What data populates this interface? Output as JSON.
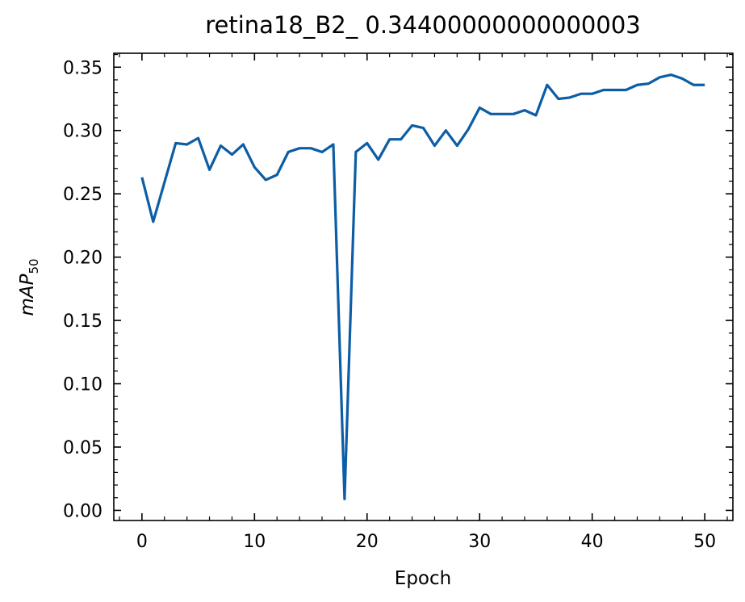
{
  "chart_data": {
    "type": "line",
    "title": "retina18_B2_ 0.34400000000000003",
    "xlabel": "Epoch",
    "ylabel": {
      "main": "mAP",
      "subscript": "50"
    },
    "xlim": [
      -2.5,
      52.5
    ],
    "ylim": [
      -0.008,
      0.361
    ],
    "x_ticks": [
      0,
      10,
      20,
      30,
      40,
      50
    ],
    "x_tick_labels": [
      "0",
      "10",
      "20",
      "30",
      "40",
      "50"
    ],
    "y_ticks": [
      0.0,
      0.05,
      0.1,
      0.15,
      0.2,
      0.25,
      0.3,
      0.35
    ],
    "y_tick_labels": [
      "0.00",
      "0.05",
      "0.10",
      "0.15",
      "0.20",
      "0.25",
      "0.30",
      "0.35"
    ],
    "grid": false,
    "series": [
      {
        "color": "#0C5DA5",
        "x": [
          0,
          1,
          2,
          3,
          4,
          5,
          6,
          7,
          8,
          9,
          10,
          11,
          12,
          13,
          14,
          15,
          16,
          17,
          18,
          19,
          20,
          21,
          22,
          23,
          24,
          25,
          26,
          27,
          28,
          29,
          30,
          31,
          32,
          33,
          34,
          35,
          36,
          37,
          38,
          39,
          40,
          41,
          42,
          43,
          44,
          45,
          46,
          47,
          48,
          49,
          50
        ],
        "values": [
          0.263,
          0.228,
          0.259,
          0.29,
          0.289,
          0.294,
          0.269,
          0.288,
          0.281,
          0.289,
          0.271,
          0.261,
          0.265,
          0.283,
          0.286,
          0.286,
          0.283,
          0.289,
          0.009,
          0.283,
          0.29,
          0.277,
          0.293,
          0.293,
          0.304,
          0.302,
          0.288,
          0.3,
          0.288,
          0.301,
          0.318,
          0.313,
          0.313,
          0.313,
          0.316,
          0.312,
          0.336,
          0.325,
          0.326,
          0.329,
          0.329,
          0.332,
          0.332,
          0.332,
          0.336,
          0.337,
          0.342,
          0.344,
          0.341,
          0.336,
          0.336
        ]
      }
    ]
  }
}
